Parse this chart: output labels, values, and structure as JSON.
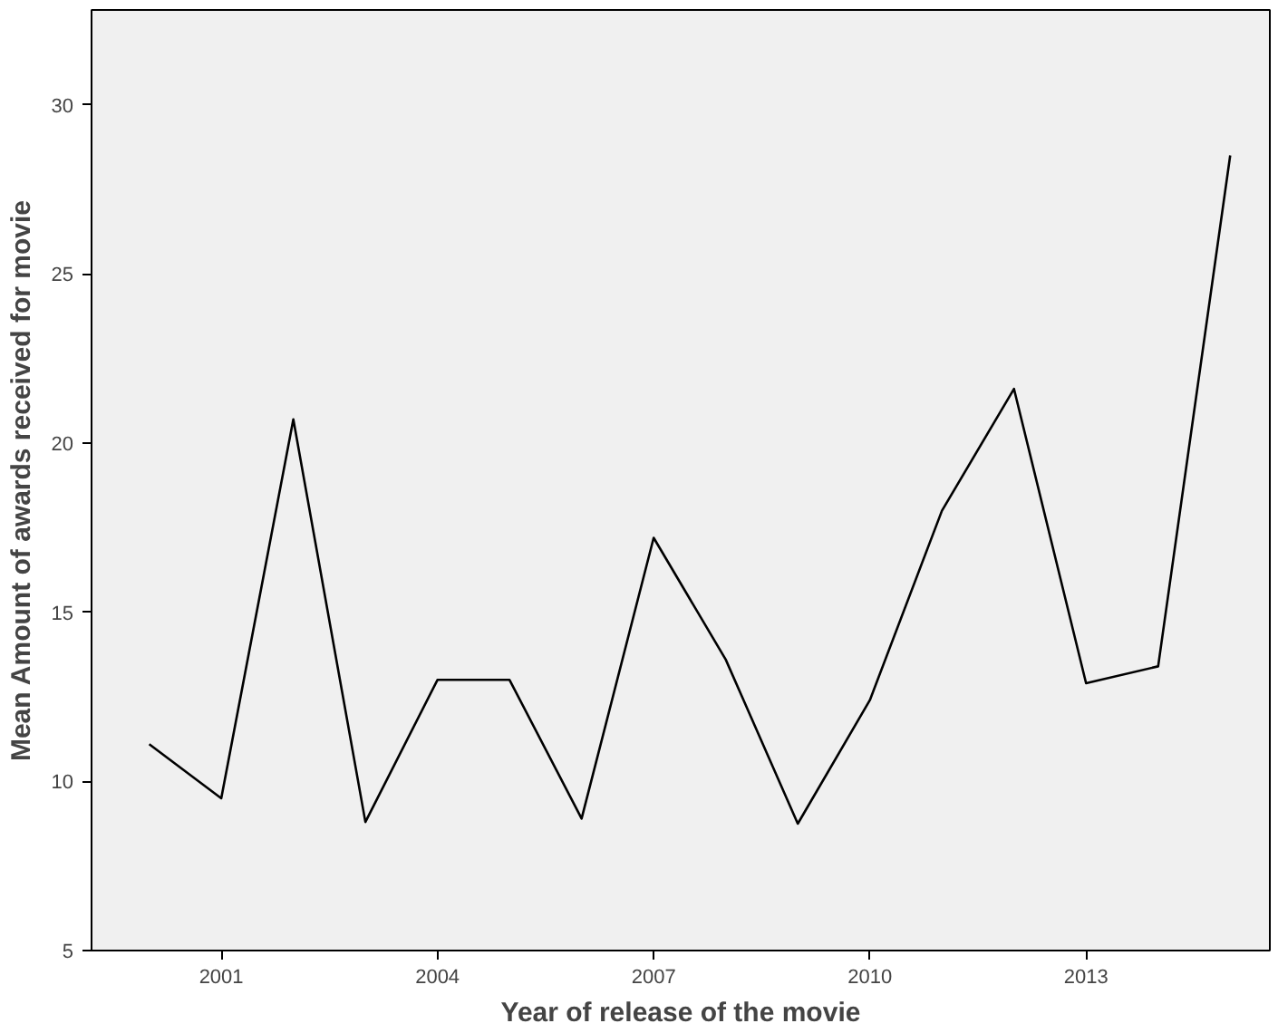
{
  "chart_data": {
    "type": "line",
    "xlabel": "Year of release of the movie",
    "ylabel": "Mean Amount of awards received for movie",
    "x": [
      2000,
      2001,
      2002,
      2003,
      2004,
      2005,
      2006,
      2007,
      2008,
      2009,
      2010,
      2011,
      2012,
      2013,
      2014,
      2015
    ],
    "series": [
      {
        "color": "#000000",
        "values": [
          11.1,
          9.5,
          20.7,
          8.8,
          13.0,
          13.0,
          8.9,
          17.2,
          13.6,
          8.75,
          12.4,
          18.0,
          21.6,
          12.9,
          13.4,
          28.5
        ]
      }
    ],
    "xlim": [
      1999.2,
      2015.55
    ],
    "xticks": [
      2001,
      2004,
      2007,
      2010,
      2013
    ],
    "ylim": [
      5,
      32.8
    ],
    "yticks": [
      5,
      10,
      15,
      20,
      25,
      30
    ],
    "grid": false,
    "marker": "none",
    "line_style": "solid"
  }
}
